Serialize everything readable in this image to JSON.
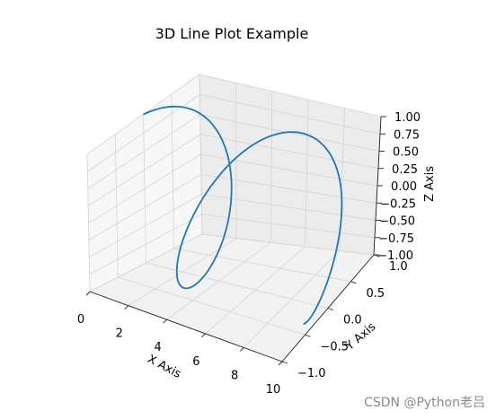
{
  "chart_data": {
    "type": "line",
    "projection": "3d",
    "title": "3D Line Plot Example",
    "xlabel": "X Axis",
    "ylabel": "Y Axis",
    "zlabel": "Z Axis",
    "x_ticks": [
      "0",
      "2",
      "4",
      "6",
      "8",
      "10"
    ],
    "y_ticks": [
      "−1.0",
      "−0.5",
      "0.0",
      "0.5",
      "1.0"
    ],
    "z_ticks": [
      "−1.00",
      "−0.75",
      "−0.50",
      "−0.25",
      "0.00",
      "0.25",
      "0.50",
      "0.75",
      "1.00"
    ],
    "xlim": [
      0,
      10
    ],
    "ylim": [
      -1,
      1
    ],
    "zlim": [
      -1,
      1
    ],
    "grid": true,
    "series": [
      {
        "color": "#1f77b4",
        "x": [
          0,
          0.5,
          1,
          1.5,
          2,
          2.5,
          3,
          3.5,
          4,
          4.5,
          5,
          5.5,
          6,
          6.5,
          7,
          7.5,
          8,
          8.5,
          9,
          9.5,
          10
        ],
        "y": [
          0,
          0.479,
          0.841,
          0.997,
          0.909,
          0.598,
          0.141,
          -0.351,
          -0.757,
          -0.978,
          -0.959,
          -0.706,
          -0.279,
          0.215,
          0.657,
          0.938,
          0.989,
          0.798,
          0.412,
          -0.075,
          -0.544
        ],
        "z": [
          1,
          0.878,
          0.54,
          0.071,
          -0.416,
          -0.801,
          -0.99,
          -0.936,
          -0.654,
          -0.211,
          0.284,
          0.709,
          0.96,
          0.977,
          0.754,
          0.347,
          -0.146,
          -0.602,
          -0.911,
          -0.997,
          -0.839
        ]
      }
    ]
  },
  "watermark": "CSDN @Python老吕"
}
